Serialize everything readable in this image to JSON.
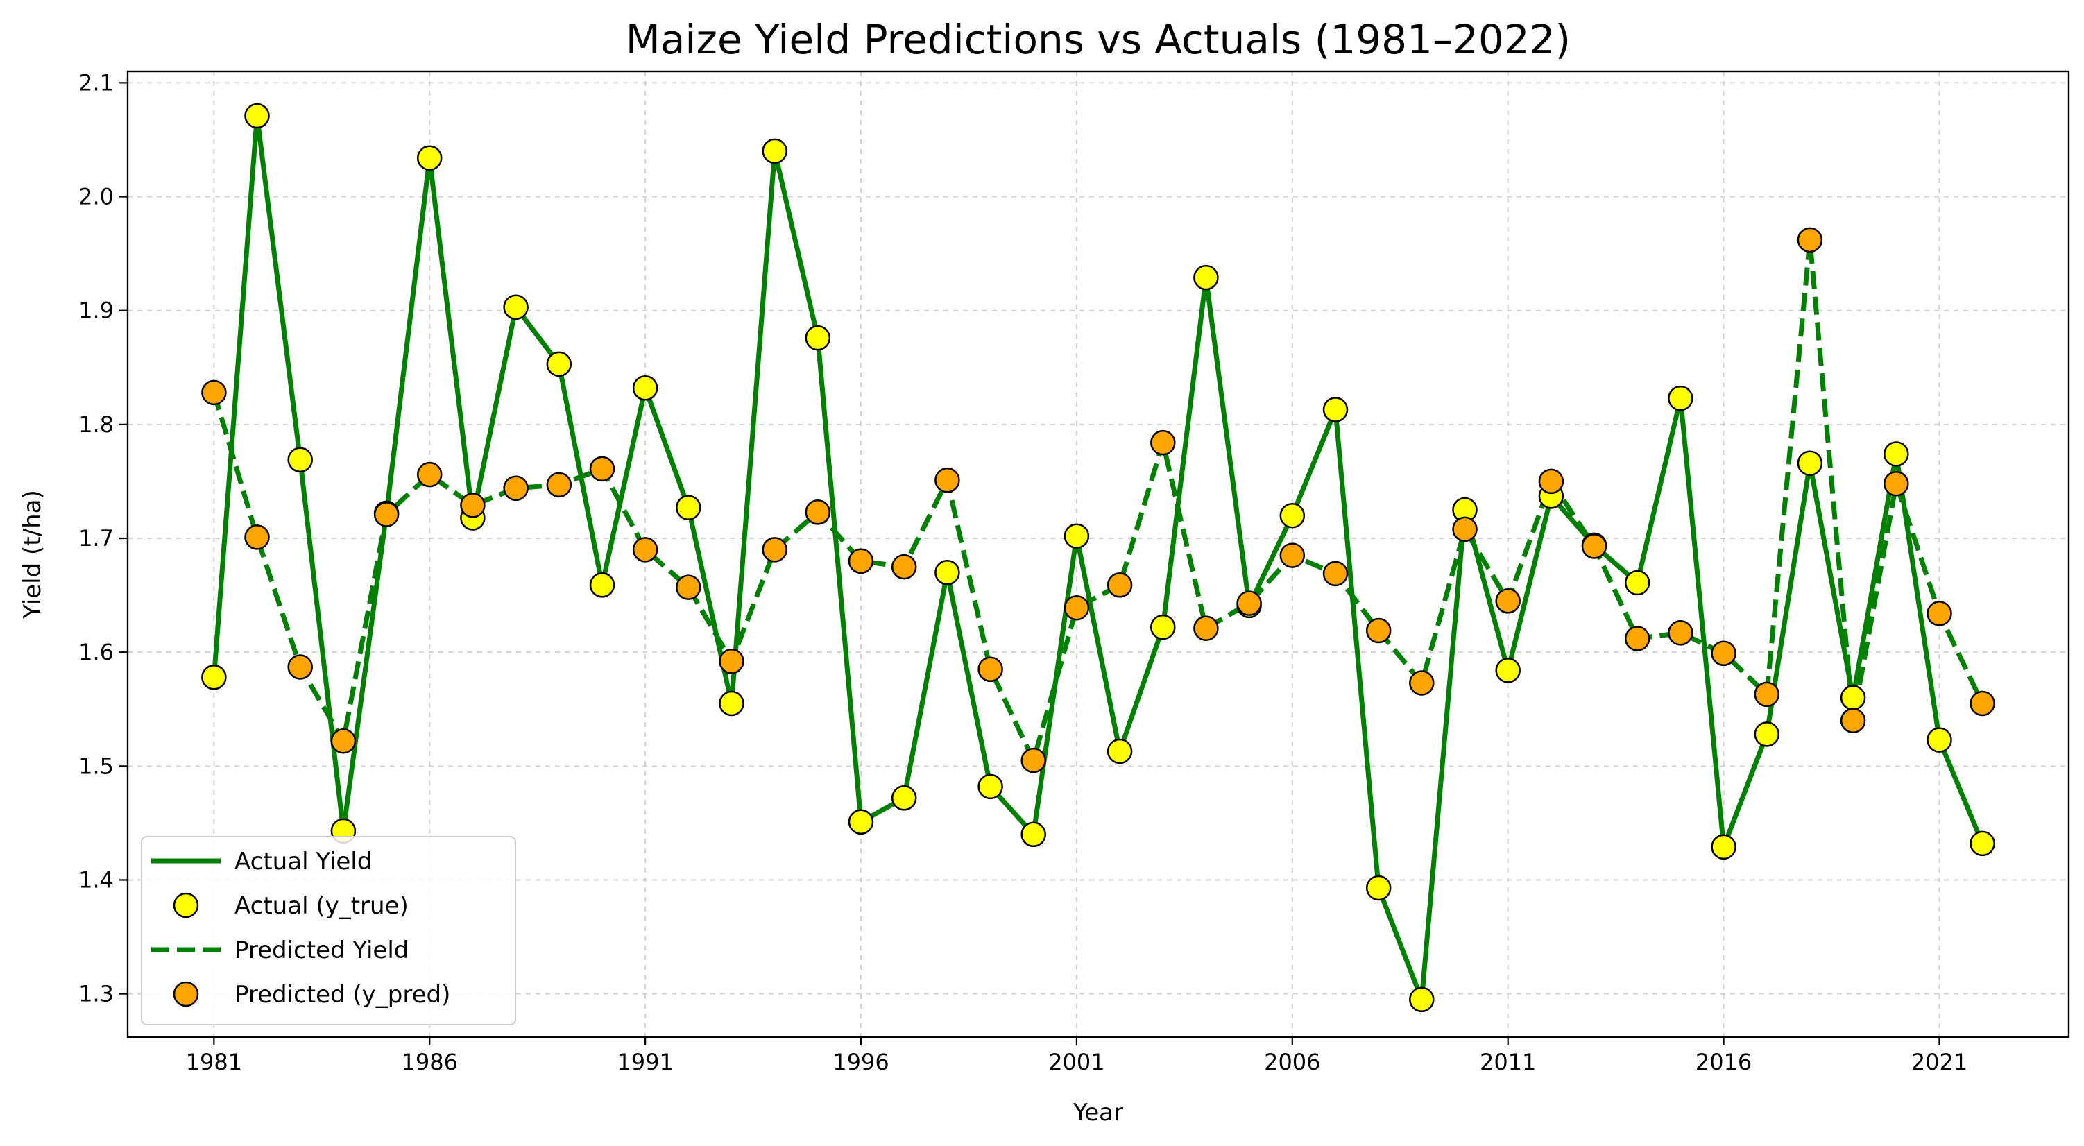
{
  "chart_data": {
    "type": "line",
    "title": "Maize Yield Predictions vs Actuals (1981–2022)",
    "xlabel": "Year",
    "ylabel": "Yield (t/ha)",
    "xlim": [
      1979,
      2024
    ],
    "ylim": [
      1.262,
      2.11
    ],
    "x_ticks": [
      1981,
      1986,
      1991,
      1996,
      2001,
      2006,
      2011,
      2016,
      2021
    ],
    "y_ticks": [
      1.3,
      1.4,
      1.5,
      1.6,
      1.7,
      1.8,
      1.9,
      2.0,
      2.1
    ],
    "y_tick_labels": [
      "1.3",
      "1.4",
      "1.5",
      "1.6",
      "1.7",
      "1.8",
      "1.9",
      "2.0",
      "2.1"
    ],
    "grid": true,
    "legend_position": "lower-left",
    "x": [
      1981,
      1982,
      1983,
      1984,
      1985,
      1986,
      1987,
      1988,
      1989,
      1990,
      1991,
      1992,
      1993,
      1994,
      1995,
      1996,
      1997,
      1998,
      1999,
      2000,
      2001,
      2002,
      2003,
      2004,
      2005,
      2006,
      2007,
      2008,
      2009,
      2010,
      2011,
      2012,
      2013,
      2014,
      2015,
      2016,
      2017,
      2018,
      2019,
      2020,
      2021,
      2022
    ],
    "series": [
      {
        "name": "Actual Yield",
        "marker_name": "Actual (y_true)",
        "line_color": "#008000",
        "marker_color": "#ffff00",
        "line_style": "solid",
        "values": [
          1.578,
          2.071,
          1.769,
          1.443,
          1.722,
          2.034,
          1.718,
          1.903,
          1.853,
          1.659,
          1.832,
          1.727,
          1.555,
          2.04,
          1.876,
          1.451,
          1.472,
          1.67,
          1.482,
          1.44,
          1.702,
          1.513,
          1.622,
          1.929,
          1.641,
          1.72,
          1.813,
          1.393,
          1.295,
          1.725,
          1.584,
          1.737,
          1.694,
          1.661,
          1.823,
          1.429,
          1.528,
          1.766,
          1.56,
          1.774,
          1.523,
          1.432
        ]
      },
      {
        "name": "Predicted Yield",
        "marker_name": "Predicted (y_pred)",
        "line_color": "#008000",
        "marker_color": "#ffa500",
        "line_style": "dashed",
        "values": [
          1.828,
          1.701,
          1.587,
          1.522,
          1.721,
          1.756,
          1.729,
          1.744,
          1.747,
          1.761,
          1.69,
          1.657,
          1.592,
          1.69,
          1.723,
          1.68,
          1.675,
          1.751,
          1.585,
          1.505,
          1.639,
          1.659,
          1.784,
          1.621,
          1.643,
          1.685,
          1.669,
          1.619,
          1.573,
          1.708,
          1.645,
          1.75,
          1.693,
          1.612,
          1.617,
          1.599,
          1.563,
          1.962,
          1.54,
          1.748,
          1.634,
          1.555
        ]
      }
    ]
  }
}
